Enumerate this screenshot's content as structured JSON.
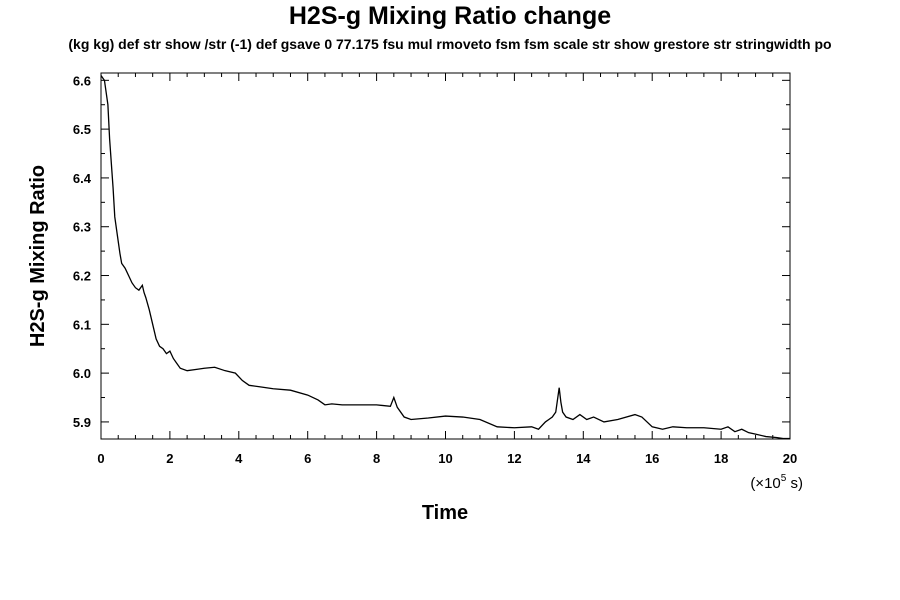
{
  "chart_data": {
    "type": "line",
    "title": "H2S-g Mixing Ratio change",
    "subtitle": "(kg kg) def str show /str (-1) def gsave 0 77.175 fsu mul rmoveto fsm fsm scale str show grestore str stringwidth po",
    "xlabel": "Time",
    "ylabel": "H2S-g Mixing Ratio",
    "x_unit_prefix": "(×10",
    "x_unit_exp": "5",
    "x_unit_suffix": " s)",
    "xlim": [
      0,
      20
    ],
    "ylim": [
      5.865,
      6.615
    ],
    "xticks": [
      "0",
      "2",
      "4",
      "6",
      "8",
      "10",
      "12",
      "14",
      "16",
      "18",
      "20"
    ],
    "yticks": [
      "5.9",
      "6.0",
      "6.1",
      "6.2",
      "6.3",
      "6.4",
      "6.5",
      "6.6"
    ],
    "grid": false,
    "series": [
      {
        "x": [
          0,
          0.1,
          0.2,
          0.25,
          0.3,
          0.35,
          0.4,
          0.5,
          0.55,
          0.6,
          0.7,
          0.8,
          0.9,
          1.0,
          1.1,
          1.2,
          1.25,
          1.3,
          1.4,
          1.5,
          1.6,
          1.7,
          1.8,
          1.9,
          2.0,
          2.1,
          2.2,
          2.3,
          2.5,
          2.8,
          3.0,
          3.3,
          3.6,
          3.9,
          4.1,
          4.3,
          4.6,
          5.0,
          5.5,
          6.0,
          6.3,
          6.5,
          6.7,
          7.0,
          7.5,
          8.0,
          8.4,
          8.5,
          8.6,
          8.8,
          9.0,
          9.5,
          10.0,
          10.5,
          11.0,
          11.5,
          12.0,
          12.5,
          12.7,
          12.9,
          13.0,
          13.1,
          13.2,
          13.3,
          13.35,
          13.4,
          13.5,
          13.7,
          13.9,
          14.1,
          14.3,
          14.6,
          15.0,
          15.5,
          15.7,
          16.0,
          16.3,
          16.6,
          17.0,
          17.5,
          18.0,
          18.2,
          18.4,
          18.6,
          18.8,
          19.0,
          19.3,
          19.6,
          19.8,
          20.0
        ],
        "y": [
          6.61,
          6.6,
          6.55,
          6.48,
          6.43,
          6.38,
          6.32,
          6.27,
          6.245,
          6.225,
          6.215,
          6.2,
          6.185,
          6.175,
          6.17,
          6.18,
          6.165,
          6.155,
          6.13,
          6.1,
          6.07,
          6.055,
          6.05,
          6.04,
          6.045,
          6.03,
          6.02,
          6.01,
          6.005,
          6.008,
          6.01,
          6.012,
          6.005,
          6.0,
          5.985,
          5.975,
          5.972,
          5.968,
          5.965,
          5.955,
          5.945,
          5.935,
          5.937,
          5.935,
          5.935,
          5.935,
          5.932,
          5.95,
          5.93,
          5.91,
          5.905,
          5.908,
          5.912,
          5.91,
          5.905,
          5.89,
          5.888,
          5.89,
          5.885,
          5.9,
          5.905,
          5.91,
          5.92,
          5.97,
          5.94,
          5.92,
          5.91,
          5.905,
          5.915,
          5.905,
          5.91,
          5.9,
          5.905,
          5.915,
          5.91,
          5.89,
          5.885,
          5.89,
          5.888,
          5.888,
          5.885,
          5.89,
          5.88,
          5.885,
          5.878,
          5.875,
          5.87,
          5.868,
          5.866,
          5.866
        ]
      }
    ]
  }
}
